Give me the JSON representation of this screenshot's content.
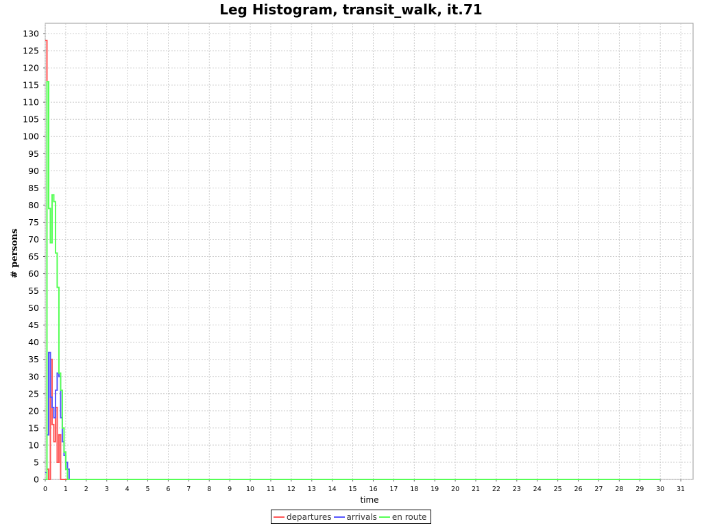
{
  "chart_data": {
    "type": "line",
    "title": "Leg Histogram, transit_walk, it.71",
    "xlabel": "time",
    "ylabel": "# persons",
    "xlim": [
      0,
      31.6
    ],
    "ylim": [
      0,
      133
    ],
    "xticks": [
      "0",
      "1",
      "2",
      "3",
      "4",
      "5",
      "6",
      "7",
      "8",
      "9",
      "10",
      "11",
      "12",
      "13",
      "14",
      "15",
      "16",
      "17",
      "18",
      "19",
      "20",
      "21",
      "22",
      "23",
      "24",
      "25",
      "26",
      "27",
      "28",
      "29",
      "30",
      "31"
    ],
    "yticks": [
      "0",
      "5",
      "10",
      "15",
      "20",
      "25",
      "30",
      "35",
      "40",
      "45",
      "50",
      "55",
      "60",
      "65",
      "70",
      "75",
      "80",
      "85",
      "90",
      "95",
      "100",
      "105",
      "110",
      "115",
      "120",
      "125",
      "130"
    ],
    "grid": true,
    "legend_position": "bottom",
    "series": [
      {
        "name": "departures",
        "color": "#ff5555",
        "x": [
          0,
          0.083,
          0.167,
          0.25,
          0.333,
          0.417,
          0.5,
          0.583,
          0.667,
          0.75,
          0.833,
          0.917,
          1.0,
          30.0
        ],
        "values": [
          128,
          3,
          0,
          35,
          16,
          11,
          21,
          5,
          13,
          0,
          0,
          0,
          0,
          0
        ]
      },
      {
        "name": "arrivals",
        "color": "#5555ff",
        "x": [
          0,
          0.083,
          0.167,
          0.25,
          0.333,
          0.417,
          0.5,
          0.583,
          0.667,
          0.75,
          0.833,
          0.917,
          1.0,
          1.083,
          1.167,
          30.0
        ],
        "values": [
          2,
          13,
          37,
          24,
          21,
          18,
          26,
          31,
          30,
          18,
          11,
          7,
          5,
          3,
          0,
          0
        ]
      },
      {
        "name": "en route",
        "color": "#55ff55",
        "x": [
          0,
          0.083,
          0.167,
          0.25,
          0.333,
          0.417,
          0.5,
          0.583,
          0.667,
          0.75,
          0.833,
          0.917,
          1.0,
          1.083,
          1.167,
          30.0
        ],
        "values": [
          0,
          116,
          79,
          69,
          83,
          81,
          66,
          56,
          31,
          26,
          15,
          8,
          3,
          0,
          0,
          0
        ]
      }
    ]
  }
}
